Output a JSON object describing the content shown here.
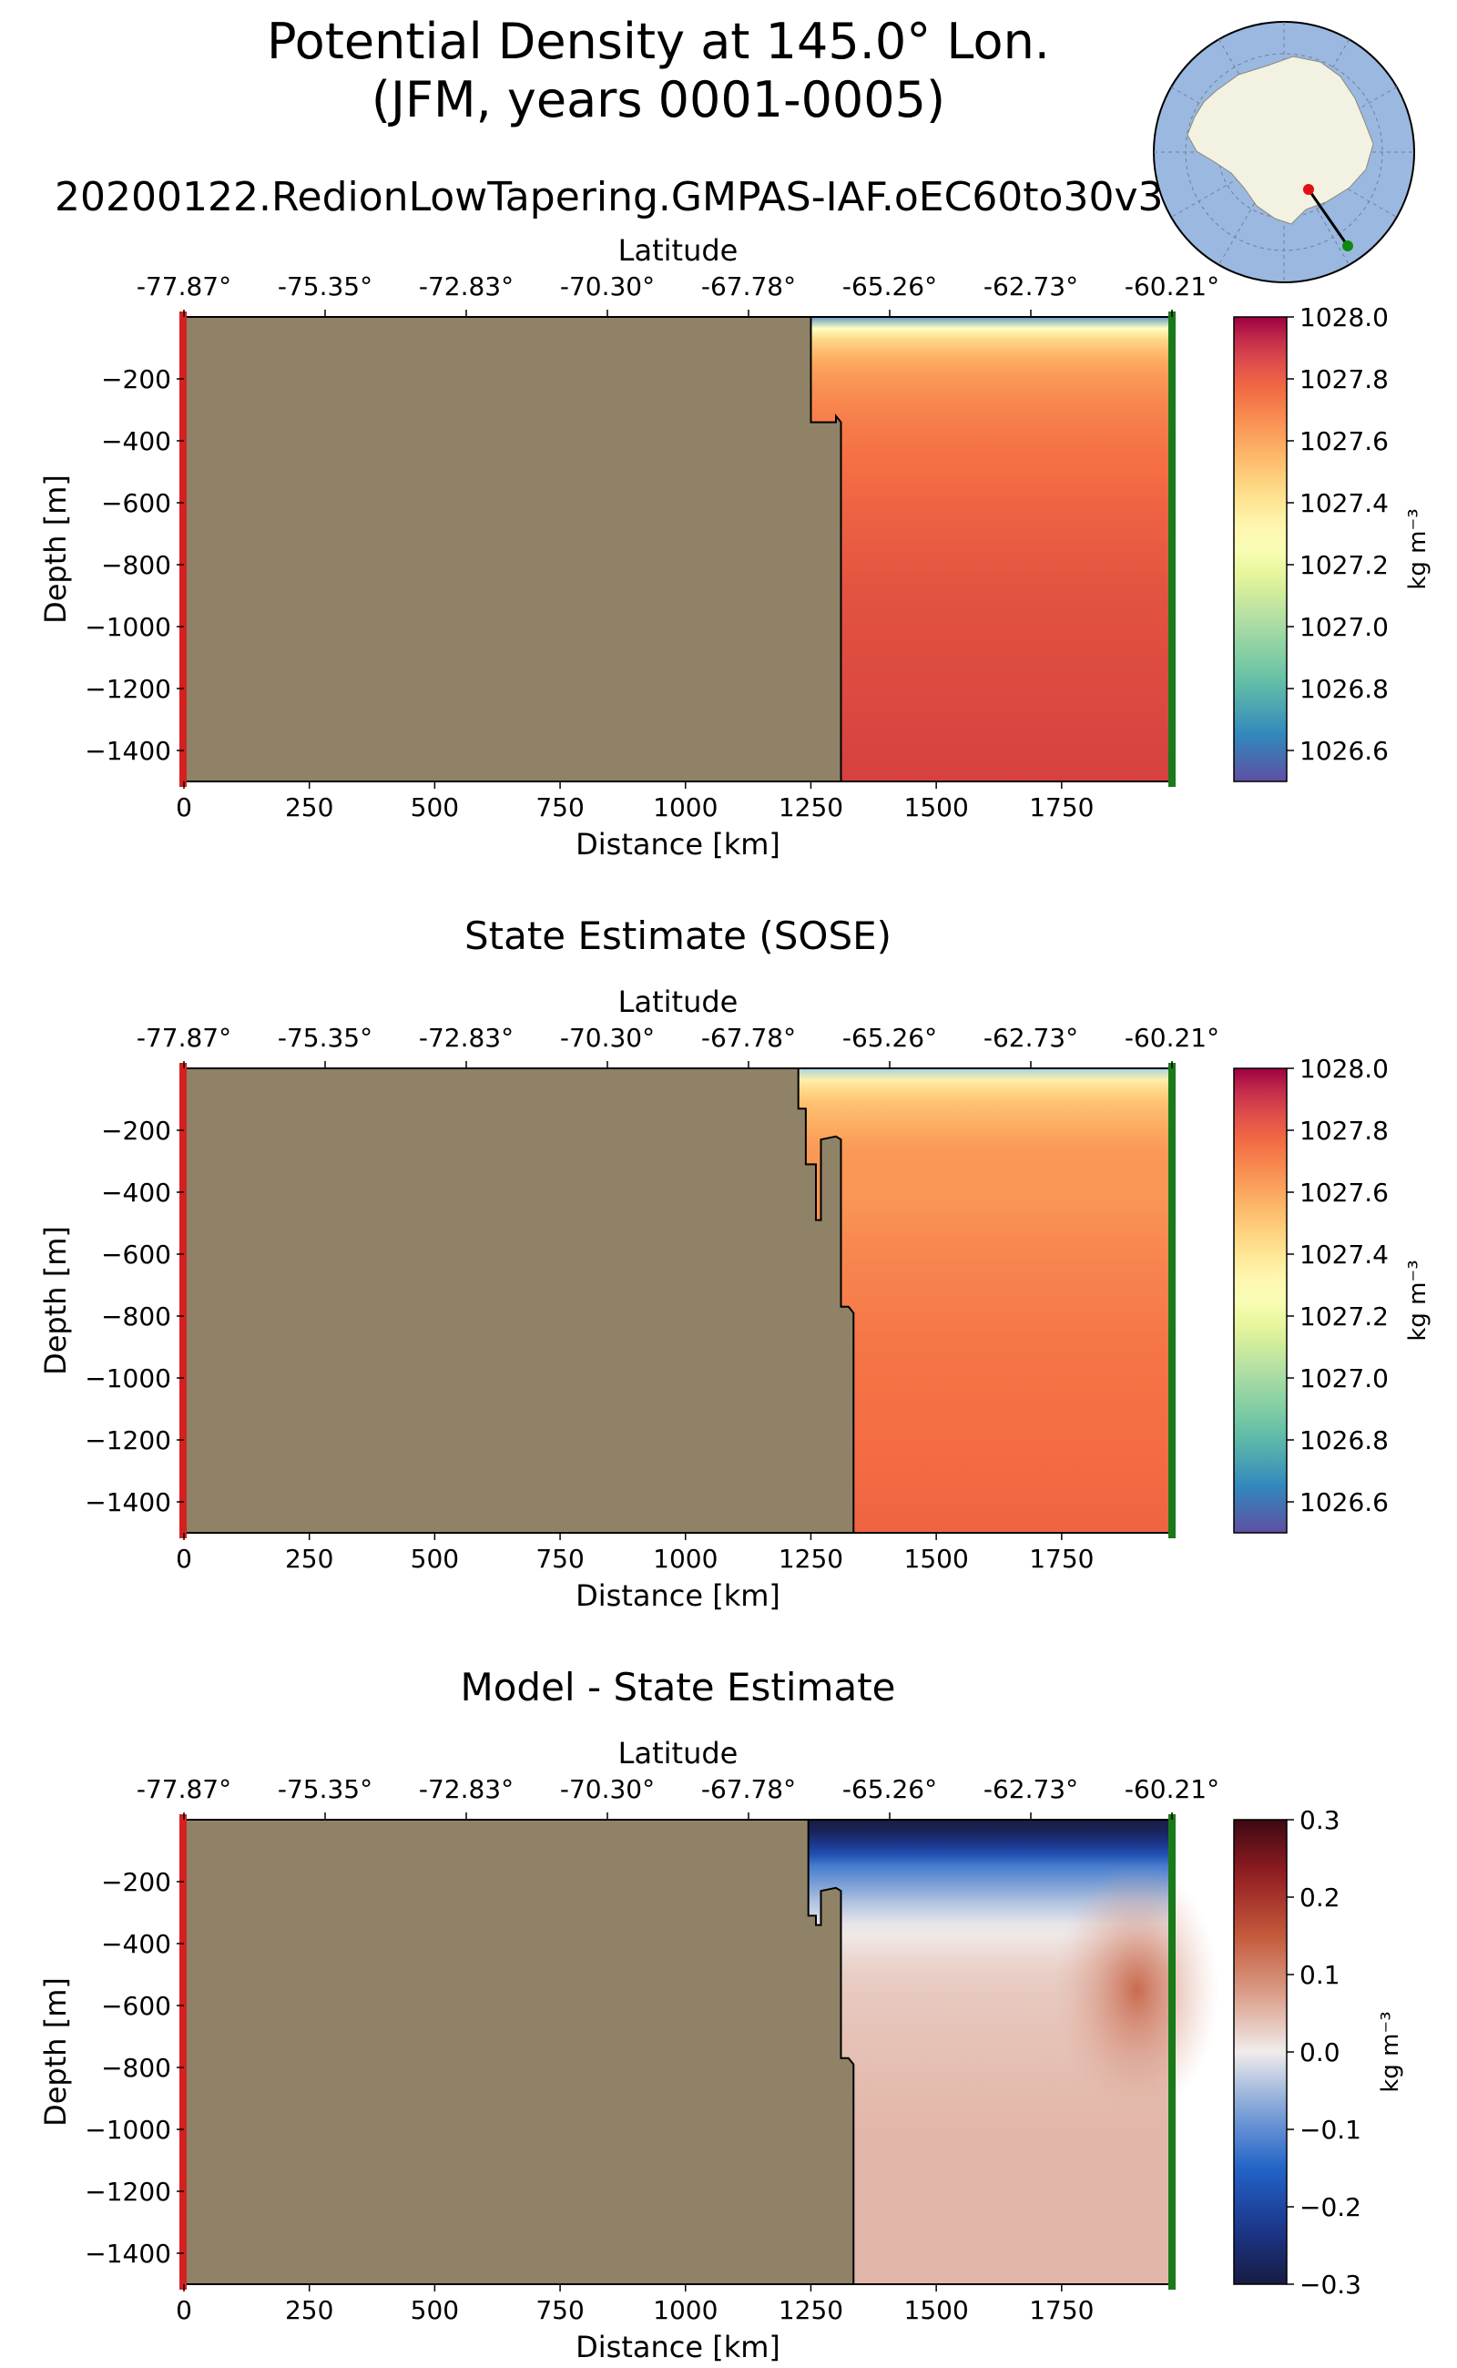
{
  "figure": {
    "title_line1": "Potential Density at 145.0° Lon.",
    "title_line2": "(JFM, years 0001-0005)",
    "run_name": "20200122.RedionLowTapering.GMPAS-IAF.oEC60to30v3",
    "colors": {
      "land": "#8f8266",
      "start_marker": "#d42020",
      "end_marker": "#1a7a1a",
      "map_ocean": "#9bb8e0",
      "map_land": "#f3f1e2",
      "map_section": "#000000"
    }
  },
  "chart_data": [
    {
      "type": "heatmap",
      "title": "",
      "xlabel": "Distance [km]",
      "ylabel": "Depth [m]",
      "x2label": "Latitude",
      "xlim": [
        0,
        1970
      ],
      "ylim": [
        -1500,
        0
      ],
      "xticks": [
        0,
        250,
        500,
        750,
        1000,
        1250,
        1500,
        1750
      ],
      "xtick_labels": [
        "0",
        "250",
        "500",
        "750",
        "1000",
        "1250",
        "1500",
        "1750"
      ],
      "yticks": [
        -200,
        -400,
        -600,
        -800,
        -1000,
        -1200,
        -1400
      ],
      "ytick_labels": [
        "−200",
        "−400",
        "−600",
        "−800",
        "−1000",
        "−1200",
        "−1400"
      ],
      "x2tick_labels": [
        "-77.87°",
        "-75.35°",
        "-72.83°",
        "-70.30°",
        "-67.78°",
        "-65.26°",
        "-62.73°",
        "-60.21°"
      ],
      "colormap": "RdYlBu_r",
      "clim": [
        1026.5,
        1028.0
      ],
      "colorbar_ticks": [
        1026.6,
        1026.8,
        1027.0,
        1027.2,
        1027.4,
        1027.6,
        1027.8,
        1028.0
      ],
      "colorbar_labels": [
        "1026.6",
        "1026.8",
        "1027.0",
        "1027.2",
        "1027.4",
        "1027.6",
        "1027.8",
        "1028.0"
      ],
      "colorbar_label": "kg m⁻³",
      "bathymetry": [
        [
          1250,
          0
        ],
        [
          1250,
          -340
        ],
        [
          1300,
          -340
        ],
        [
          1300,
          -320
        ],
        [
          1310,
          -340
        ],
        [
          1310,
          -1500
        ]
      ],
      "density_profile": {
        "depths": [
          0,
          -30,
          -60,
          -100,
          -150,
          -200,
          -280,
          -400,
          -600,
          -900,
          -1500
        ],
        "values_ocean": [
          1026.7,
          1027.2,
          1027.4,
          1027.5,
          1027.6,
          1027.65,
          1027.7,
          1027.75,
          1027.8,
          1027.85,
          1027.9
        ],
        "values_shelf": [
          1027.3,
          1027.5,
          1027.6,
          1027.7,
          1027.75,
          1027.8,
          1027.85,
          1027.9,
          1027.9,
          1027.9,
          1027.9
        ]
      }
    },
    {
      "type": "heatmap",
      "title": "State Estimate (SOSE)",
      "xlabel": "Distance [km]",
      "ylabel": "Depth [m]",
      "x2label": "Latitude",
      "xlim": [
        0,
        1970
      ],
      "ylim": [
        -1500,
        0
      ],
      "xticks": [
        0,
        250,
        500,
        750,
        1000,
        1250,
        1500,
        1750
      ],
      "xtick_labels": [
        "0",
        "250",
        "500",
        "750",
        "1000",
        "1250",
        "1500",
        "1750"
      ],
      "yticks": [
        -200,
        -400,
        -600,
        -800,
        -1000,
        -1200,
        -1400
      ],
      "ytick_labels": [
        "−200",
        "−400",
        "−600",
        "−800",
        "−1000",
        "−1200",
        "−1400"
      ],
      "x2tick_labels": [
        "-77.87°",
        "-75.35°",
        "-72.83°",
        "-70.30°",
        "-67.78°",
        "-65.26°",
        "-62.73°",
        "-60.21°"
      ],
      "colormap": "RdYlBu_r",
      "clim": [
        1026.5,
        1028.0
      ],
      "colorbar_ticks": [
        1026.6,
        1026.8,
        1027.0,
        1027.2,
        1027.4,
        1027.6,
        1027.8,
        1028.0
      ],
      "colorbar_labels": [
        "1026.6",
        "1026.8",
        "1027.0",
        "1027.2",
        "1027.4",
        "1027.6",
        "1027.8",
        "1028.0"
      ],
      "colorbar_label": "kg m⁻³",
      "bathymetry": [
        [
          1225,
          0
        ],
        [
          1225,
          -130
        ],
        [
          1240,
          -130
        ],
        [
          1240,
          -310
        ],
        [
          1260,
          -310
        ],
        [
          1260,
          -490
        ],
        [
          1270,
          -490
        ],
        [
          1270,
          -230
        ],
        [
          1300,
          -220
        ],
        [
          1310,
          -230
        ],
        [
          1310,
          -770
        ],
        [
          1325,
          -770
        ],
        [
          1335,
          -790
        ],
        [
          1335,
          -1500
        ]
      ],
      "density_profile": {
        "depths": [
          0,
          -30,
          -60,
          -100,
          -150,
          -200,
          -280,
          -400,
          -600,
          -900,
          -1500
        ],
        "values_ocean": [
          1027.0,
          1027.3,
          1027.4,
          1027.5,
          1027.55,
          1027.6,
          1027.65,
          1027.65,
          1027.7,
          1027.75,
          1027.8
        ],
        "values_shelf": [
          1027.3,
          1027.5,
          1027.6,
          1027.7,
          1027.75,
          1027.8,
          1027.8,
          1027.8,
          1027.8,
          1027.8,
          1027.8
        ]
      }
    },
    {
      "type": "heatmap",
      "title": "Model - State Estimate",
      "xlabel": "Distance [km]",
      "ylabel": "Depth [m]",
      "x2label": "Latitude",
      "xlim": [
        0,
        1970
      ],
      "ylim": [
        -1500,
        0
      ],
      "xticks": [
        0,
        250,
        500,
        750,
        1000,
        1250,
        1500,
        1750
      ],
      "xtick_labels": [
        "0",
        "250",
        "500",
        "750",
        "1000",
        "1250",
        "1500",
        "1750"
      ],
      "yticks": [
        -200,
        -400,
        -600,
        -800,
        -1000,
        -1200,
        -1400
      ],
      "ytick_labels": [
        "−200",
        "−400",
        "−600",
        "−800",
        "−1000",
        "−1200",
        "−1400"
      ],
      "x2tick_labels": [
        "-77.87°",
        "-75.35°",
        "-72.83°",
        "-70.30°",
        "-67.78°",
        "-65.26°",
        "-62.73°",
        "-60.21°"
      ],
      "colormap": "balance",
      "clim": [
        -0.3,
        0.3
      ],
      "colorbar_ticks": [
        -0.3,
        -0.2,
        -0.1,
        0.0,
        0.1,
        0.2,
        0.3
      ],
      "colorbar_labels": [
        "−0.3",
        "−0.2",
        "−0.1",
        "0.0",
        "0.1",
        "0.2",
        "0.3"
      ],
      "colorbar_label": "kg m⁻³",
      "bathymetry": [
        [
          1245,
          0
        ],
        [
          1245,
          -310
        ],
        [
          1260,
          -310
        ],
        [
          1260,
          -340
        ],
        [
          1270,
          -340
        ],
        [
          1270,
          -230
        ],
        [
          1300,
          -220
        ],
        [
          1310,
          -230
        ],
        [
          1310,
          -770
        ],
        [
          1325,
          -770
        ],
        [
          1335,
          -790
        ],
        [
          1335,
          -1500
        ]
      ],
      "anomaly_profile": {
        "depths": [
          0,
          -20,
          -60,
          -100,
          -150,
          -250,
          -350,
          -500,
          -700,
          -1000,
          -1500
        ],
        "values": [
          -0.3,
          -0.3,
          -0.25,
          -0.2,
          -0.12,
          -0.05,
          0.0,
          0.03,
          0.04,
          0.05,
          0.05
        ]
      }
    }
  ]
}
